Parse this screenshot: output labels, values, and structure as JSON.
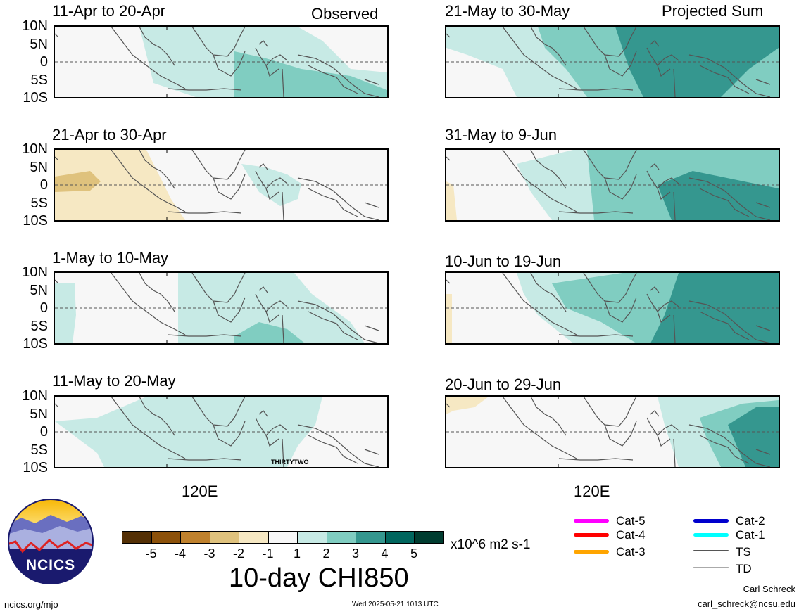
{
  "headers": {
    "left": "Observed",
    "right": "Projected Sum"
  },
  "panels": [
    {
      "title": "11-Apr to 20-Apr",
      "col": 0,
      "row": 0
    },
    {
      "title": "21-Apr to 30-Apr",
      "col": 0,
      "row": 1
    },
    {
      "title": "1-May to 10-May",
      "col": 0,
      "row": 2
    },
    {
      "title": "11-May to 20-May",
      "col": 0,
      "row": 3
    },
    {
      "title": "21-May to 30-May",
      "col": 1,
      "row": 0
    },
    {
      "title": "31-May to 9-Jun",
      "col": 1,
      "row": 1
    },
    {
      "title": "10-Jun to 19-Jun",
      "col": 1,
      "row": 2
    },
    {
      "title": "20-Jun to 29-Jun",
      "col": 1,
      "row": 3
    }
  ],
  "lat_labels": [
    "10N",
    "5N",
    "0",
    "5S",
    "10S"
  ],
  "lon_label": "120E",
  "storm_label": "THIRTYTWO",
  "colorbar": {
    "title": "10-day CHI850",
    "units": "x10^6 m2 s-1",
    "ticks": [
      "-5",
      "-4",
      "-3",
      "-2",
      "-1",
      "1",
      "2",
      "3",
      "4",
      "5"
    ],
    "colors": [
      "#543005",
      "#8c510a",
      "#bf812d",
      "#dfc27d",
      "#f6e8c3",
      "#f7f7f7",
      "#c7eae5",
      "#80cdc1",
      "#35978f",
      "#01665e",
      "#003c30"
    ]
  },
  "legend": [
    {
      "label": "Cat-5",
      "color": "#ff00ff"
    },
    {
      "label": "Cat-4",
      "color": "#ff0000"
    },
    {
      "label": "Cat-3",
      "color": "#ffa500"
    },
    {
      "label": "Cat-2",
      "color": "#0000cd"
    },
    {
      "label": "Cat-1",
      "color": "#00ffff"
    },
    {
      "label": "TS",
      "color": "#555555"
    },
    {
      "label": "TD",
      "color": "#aaaaaa"
    }
  ],
  "logo": {
    "text": "NCICS"
  },
  "footer": {
    "left": "ncics.org/mjo",
    "center": "Wed 2025-05-21 1013 UTC",
    "right_name": "Carl Schreck",
    "right_email": "carl_schreck@ncsu.edu"
  }
}
